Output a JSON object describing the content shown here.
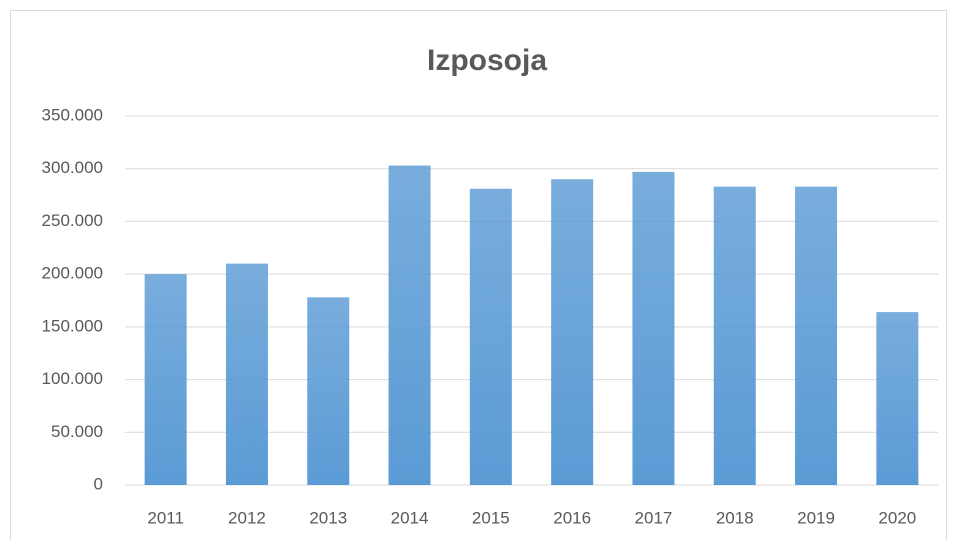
{
  "chart_data": {
    "type": "bar",
    "title": "Izposoja",
    "categories": [
      "2011",
      "2012",
      "2013",
      "2014",
      "2015",
      "2016",
      "2017",
      "2018",
      "2019",
      "2020"
    ],
    "values": [
      200000,
      210000,
      178000,
      303000,
      281000,
      290000,
      297000,
      283000,
      283000,
      164000
    ],
    "color": "#5b9bd5",
    "ylim": [
      0,
      350000
    ],
    "yticks": [
      0,
      {
        "value": 50000,
        "label": "50.000"
      },
      {
        "value": 100000,
        "label": "100.000"
      },
      {
        "value": 150000,
        "label": "150.000"
      },
      {
        "value": 200000,
        "label": "200.000"
      },
      {
        "value": 250000,
        "label": "250.000"
      },
      {
        "value": 300000,
        "label": "300.000"
      },
      {
        "value": 350000,
        "label": "350.000"
      }
    ],
    "grid": true
  }
}
